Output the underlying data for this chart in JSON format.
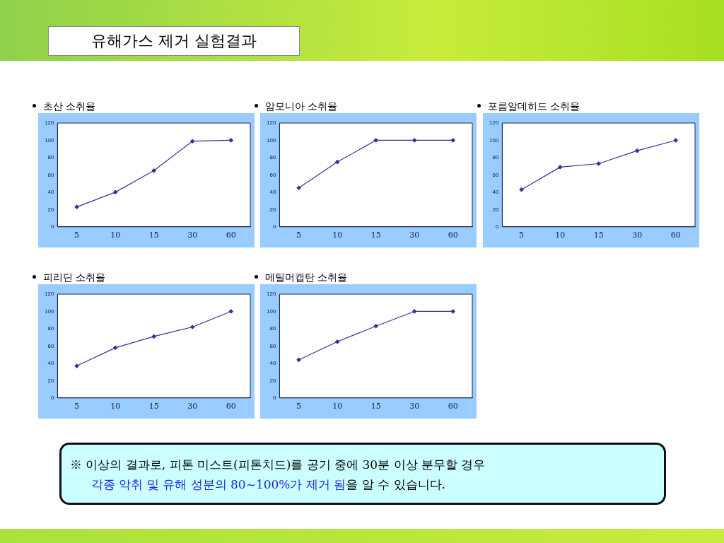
{
  "chart_data": [
    {
      "type": "line",
      "title": "초산 소취율",
      "categories": [
        "5",
        "10",
        "15",
        "30",
        "60"
      ],
      "series": [
        {
          "color": "#333399",
          "values": [
            23,
            40,
            65,
            99,
            100
          ]
        }
      ],
      "ylim": [
        0,
        120
      ],
      "yticks": [
        0,
        20,
        40,
        60,
        80,
        100,
        120
      ],
      "marker": "diamond",
      "grid": false,
      "legend": false
    },
    {
      "type": "line",
      "title": "암모니아 소취율",
      "categories": [
        "5",
        "10",
        "15",
        "30",
        "60"
      ],
      "series": [
        {
          "color": "#333399",
          "values": [
            45,
            75,
            100,
            100,
            100
          ]
        }
      ],
      "ylim": [
        0,
        120
      ],
      "yticks": [
        0,
        20,
        40,
        60,
        80,
        100,
        120
      ],
      "marker": "diamond",
      "grid": false,
      "legend": false
    },
    {
      "type": "line",
      "title": "포름알데히드 소취율",
      "categories": [
        "5",
        "10",
        "15",
        "30",
        "60"
      ],
      "series": [
        {
          "color": "#333399",
          "values": [
            43,
            69,
            73,
            88,
            100
          ]
        }
      ],
      "ylim": [
        0,
        120
      ],
      "yticks": [
        0,
        20,
        40,
        60,
        80,
        100,
        120
      ],
      "marker": "diamond",
      "grid": false,
      "legend": false
    },
    {
      "type": "line",
      "title": "피리딘 소취율",
      "categories": [
        "5",
        "10",
        "15",
        "30",
        "60"
      ],
      "series": [
        {
          "color": "#333399",
          "values": [
            37,
            58,
            71,
            82,
            100
          ]
        }
      ],
      "ylim": [
        0,
        120
      ],
      "yticks": [
        0,
        20,
        40,
        60,
        80,
        100,
        120
      ],
      "marker": "diamond",
      "grid": false,
      "legend": false
    },
    {
      "type": "line",
      "title": "메틸머캡탄 소취율",
      "categories": [
        "5",
        "10",
        "15",
        "30",
        "60"
      ],
      "series": [
        {
          "color": "#333399",
          "values": [
            44,
            65,
            83,
            100,
            100
          ]
        }
      ],
      "ylim": [
        0,
        120
      ],
      "yticks": [
        0,
        20,
        40,
        60,
        80,
        100,
        120
      ],
      "marker": "diamond",
      "grid": false,
      "legend": false
    },
    {
      "type": "other",
      "title": "유해가스 제거 실험결과",
      "annotations": [
        "※ 이상의 결과로, 피톤 미스트(피톤치드)를 공기 중에 30분 이상 분무할 경우",
        "각종 악취 및 유해 성분의 80~100%가 제거 됨",
        "을 알 수 있습니다."
      ]
    }
  ]
}
